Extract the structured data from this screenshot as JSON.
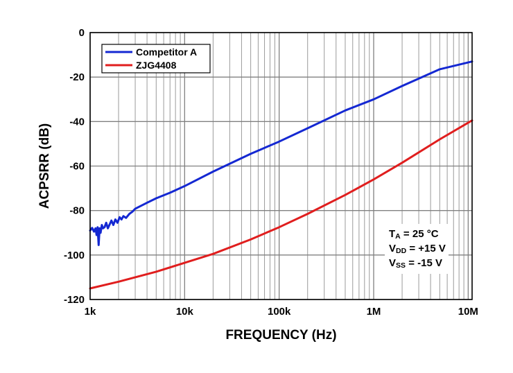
{
  "chart_data": {
    "type": "line",
    "title": "",
    "xlabel": "FREQUENCY (Hz)",
    "ylabel": "ACPSRR (dB)",
    "xscale": "log",
    "xlim": [
      1000,
      11000000
    ],
    "ylim": [
      -120,
      0
    ],
    "x_ticks": [
      {
        "value": 1000,
        "label": "1k"
      },
      {
        "value": 10000,
        "label": "10k"
      },
      {
        "value": 100000,
        "label": "100k"
      },
      {
        "value": 1000000,
        "label": "1M"
      },
      {
        "value": 10000000,
        "label": "10M"
      }
    ],
    "y_ticks": [
      {
        "value": 0,
        "label": "0"
      },
      {
        "value": -20,
        "label": "-20"
      },
      {
        "value": -40,
        "label": "-40"
      },
      {
        "value": -60,
        "label": "-60"
      },
      {
        "value": -80,
        "label": "-80"
      },
      {
        "value": -100,
        "label": "-100"
      },
      {
        "value": -120,
        "label": "-120"
      }
    ],
    "grid": true,
    "legend_position": "top-left",
    "series": [
      {
        "name": "Competitor A",
        "color": "#1428d2",
        "x": [
          1000,
          1050,
          1100,
          1140,
          1170,
          1200,
          1230,
          1260,
          1290,
          1330,
          1370,
          1420,
          1480,
          1540,
          1600,
          1680,
          1760,
          1850,
          1950,
          2050,
          2150,
          2250,
          2400,
          2600,
          2800,
          3000,
          4000,
          5000,
          7000,
          10000,
          20000,
          50000,
          100000,
          200000,
          500000,
          1000000,
          2000000,
          5000000,
          11000000
        ],
        "y": [
          -89,
          -87.8,
          -89.5,
          -88,
          -91,
          -87.5,
          -95.5,
          -88,
          -90,
          -86.5,
          -88,
          -87.5,
          -85.5,
          -88,
          -86.5,
          -84.5,
          -86.5,
          -84,
          -85.5,
          -83,
          -84,
          -82.5,
          -83.3,
          -81.5,
          -80.5,
          -79.2,
          -76.5,
          -74.5,
          -72,
          -69,
          -62.5,
          -54.5,
          -49,
          -43,
          -35,
          -30,
          -24,
          -16.5,
          -13
        ]
      },
      {
        "name": "ZJG4408",
        "color": "#e01e1e",
        "x": [
          1000,
          2000,
          5000,
          10000,
          20000,
          50000,
          100000,
          200000,
          500000,
          1000000,
          2000000,
          5000000,
          11000000
        ],
        "y": [
          -115,
          -112,
          -107.5,
          -103.5,
          -99.5,
          -93,
          -87.5,
          -81.5,
          -73,
          -66,
          -58.5,
          -48,
          -39.5
        ]
      }
    ],
    "annotations": [
      {
        "main": "T",
        "sub": "A",
        "rest": " = 25 °C"
      },
      {
        "main": "V",
        "sub": "DD",
        "rest": " = +15 V"
      },
      {
        "main": "V",
        "sub": "SS",
        "rest": " = -15 V"
      }
    ]
  }
}
